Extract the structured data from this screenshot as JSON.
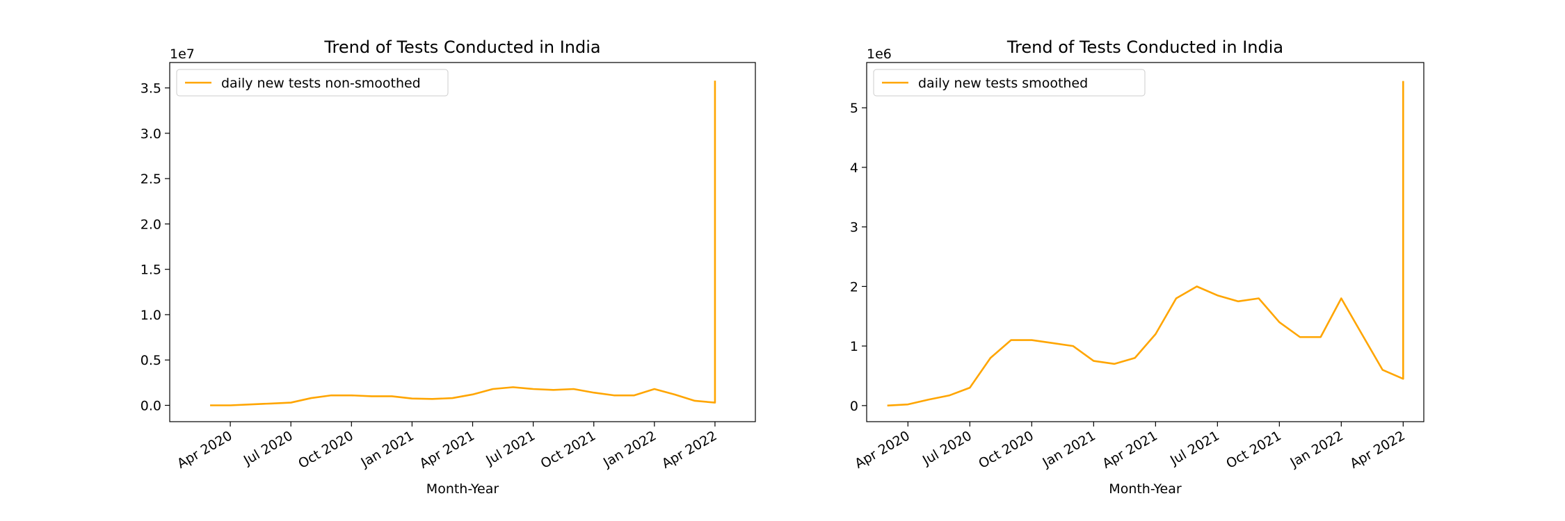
{
  "chart_data": [
    {
      "type": "line",
      "title": "Trend of Tests Conducted in India",
      "xlabel": "Month-Year",
      "y_offset_label": "1e7",
      "legend": "upper left",
      "x": [
        "2020-03",
        "2020-04",
        "2020-05",
        "2020-06",
        "2020-07",
        "2020-08",
        "2020-09",
        "2020-10",
        "2020-11",
        "2020-12",
        "2021-01",
        "2021-02",
        "2021-03",
        "2021-04",
        "2021-05",
        "2021-06",
        "2021-07",
        "2021-08",
        "2021-09",
        "2021-10",
        "2021-11",
        "2021-12",
        "2022-01",
        "2022-02",
        "2022-03",
        "2022-04",
        "2022-04"
      ],
      "series": [
        {
          "name": "daily new tests non-smoothed",
          "color": "#ffa500",
          "values": [
            0.0,
            0.0,
            0.01,
            0.02,
            0.03,
            0.08,
            0.11,
            0.11,
            0.1,
            0.1,
            0.075,
            0.07,
            0.08,
            0.12,
            0.18,
            0.2,
            0.18,
            0.17,
            0.18,
            0.14,
            0.11,
            0.11,
            0.18,
            0.12,
            0.05,
            0.03,
            3.58
          ]
        }
      ],
      "xlim": [
        "2020-01",
        "2022-06"
      ],
      "xticks": [
        {
          "value": "2020-04",
          "label": "Apr 2020"
        },
        {
          "value": "2020-07",
          "label": "Jul 2020"
        },
        {
          "value": "2020-10",
          "label": "Oct 2020"
        },
        {
          "value": "2021-01",
          "label": "Jan 2021"
        },
        {
          "value": "2021-04",
          "label": "Apr 2021"
        },
        {
          "value": "2021-07",
          "label": "Jul 2021"
        },
        {
          "value": "2021-10",
          "label": "Oct 2021"
        },
        {
          "value": "2022-01",
          "label": "Jan 2022"
        },
        {
          "value": "2022-04",
          "label": "Apr 2022"
        }
      ],
      "ylim": [
        -0.18,
        3.78
      ],
      "yticks": [
        {
          "value": 0,
          "label": "0.0"
        },
        0.5,
        {
          "value": 1,
          "label": "1.0"
        },
        1.5,
        {
          "value": 2,
          "label": "2.0"
        },
        2.5,
        {
          "value": 3,
          "label": "3.0"
        },
        3.5
      ]
    },
    {
      "type": "line",
      "title": "Trend of Tests Conducted in India",
      "xlabel": "Month-Year",
      "y_offset_label": "1e6",
      "legend": "upper left",
      "x": [
        "2020-03",
        "2020-04",
        "2020-05",
        "2020-06",
        "2020-07",
        "2020-08",
        "2020-09",
        "2020-10",
        "2020-11",
        "2020-12",
        "2021-01",
        "2021-02",
        "2021-03",
        "2021-04",
        "2021-05",
        "2021-06",
        "2021-07",
        "2021-08",
        "2021-09",
        "2021-10",
        "2021-11",
        "2021-12",
        "2022-01",
        "2022-02",
        "2022-03",
        "2022-04",
        "2022-04"
      ],
      "series": [
        {
          "name": "daily new tests smoothed",
          "color": "#ffa500",
          "values": [
            0.0,
            0.02,
            0.1,
            0.17,
            0.3,
            0.8,
            1.1,
            1.1,
            1.05,
            1.0,
            0.75,
            0.7,
            0.8,
            1.2,
            1.8,
            2.0,
            1.85,
            1.75,
            1.8,
            1.4,
            1.15,
            1.15,
            1.8,
            1.2,
            0.6,
            0.45,
            5.45
          ]
        }
      ],
      "xlim": [
        "2020-02",
        "2022-05"
      ],
      "xticks": [
        {
          "value": "2020-04",
          "label": "Apr 2020"
        },
        {
          "value": "2020-07",
          "label": "Jul 2020"
        },
        {
          "value": "2020-10",
          "label": "Oct 2020"
        },
        {
          "value": "2021-01",
          "label": "Jan 2021"
        },
        {
          "value": "2021-04",
          "label": "Apr 2021"
        },
        {
          "value": "2021-07",
          "label": "Jul 2021"
        },
        {
          "value": "2021-10",
          "label": "Oct 2021"
        },
        {
          "value": "2022-01",
          "label": "Jan 2022"
        },
        {
          "value": "2022-04",
          "label": "Apr 2022"
        }
      ],
      "ylim": [
        -0.27,
        5.76
      ],
      "yticks": [
        0,
        1,
        2,
        3,
        4,
        5
      ]
    }
  ]
}
